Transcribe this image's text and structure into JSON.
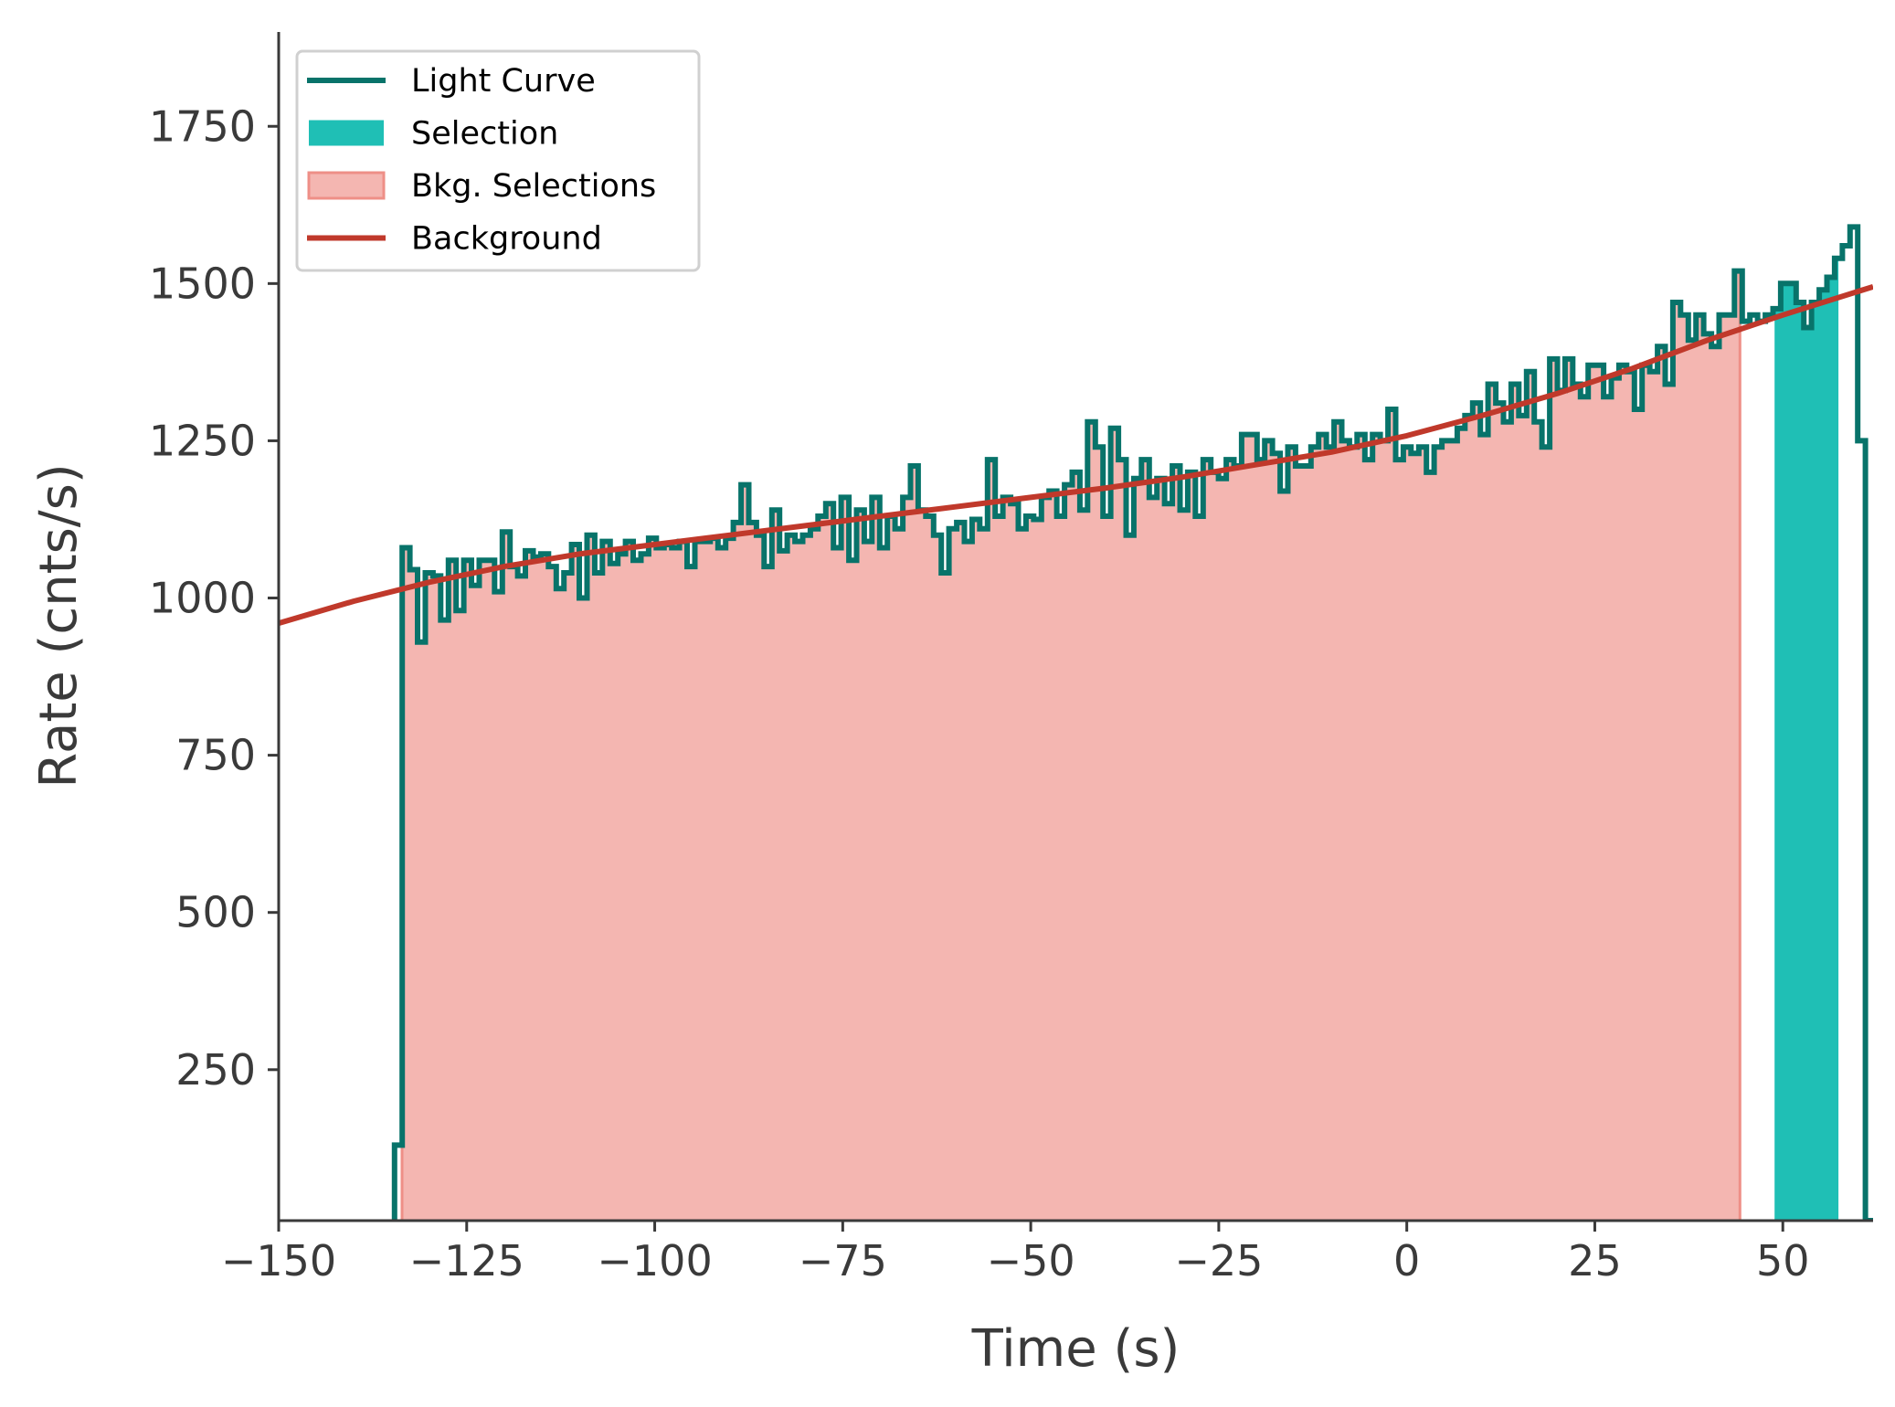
{
  "chart_data": {
    "type": "line",
    "title": "",
    "xlabel": "Time (s)",
    "ylabel": "Rate (cnts/s)",
    "xlim": [
      -150,
      62
    ],
    "ylim": [
      10,
      1900
    ],
    "xticks": [
      -150,
      -125,
      -100,
      -75,
      -50,
      -25,
      0,
      25,
      50
    ],
    "xtick_labels": [
      "−150",
      "−125",
      "−100",
      "−75",
      "−50",
      "−25",
      "0",
      "25",
      "50"
    ],
    "yticks": [
      250,
      500,
      750,
      1000,
      1250,
      1500,
      1750
    ],
    "ytick_labels": [
      "250",
      "500",
      "750",
      "1000",
      "1250",
      "1500",
      "1750"
    ],
    "grid": false,
    "legend_position": "top-left",
    "colors": {
      "light_curve": "#08736a",
      "selection": "#1fbfb5",
      "bkg_selection": "#f4b6b1",
      "bkg_selection_edge": "#ee8f87",
      "background": "#c0392b",
      "axis": "#3a3a3a"
    },
    "legend": [
      {
        "label": "Light Curve",
        "kind": "line",
        "color": "#08736a"
      },
      {
        "label": "Selection",
        "kind": "patch",
        "color": "#1fbfb5"
      },
      {
        "label": "Bkg. Selections",
        "kind": "patch",
        "color": "#f4b6b1"
      },
      {
        "label": "Background",
        "kind": "line",
        "color": "#c0392b"
      }
    ],
    "light_curve": {
      "name": "Light Curve",
      "step_start": -134.6,
      "step_width": 1.024,
      "values": [
        130,
        1080,
        1045,
        930,
        1040,
        1035,
        965,
        1060,
        980,
        1060,
        1020,
        1060,
        1060,
        1010,
        1105,
        1050,
        1035,
        1075,
        1065,
        1070,
        1050,
        1015,
        1040,
        1085,
        1000,
        1100,
        1040,
        1090,
        1055,
        1070,
        1090,
        1060,
        1070,
        1095,
        1080,
        1085,
        1080,
        1090,
        1050,
        1090,
        1090,
        1095,
        1080,
        1095,
        1120,
        1180,
        1120,
        1100,
        1050,
        1140,
        1075,
        1100,
        1090,
        1100,
        1110,
        1130,
        1150,
        1080,
        1160,
        1060,
        1140,
        1090,
        1160,
        1080,
        1130,
        1110,
        1160,
        1210,
        1140,
        1130,
        1100,
        1040,
        1110,
        1120,
        1090,
        1125,
        1110,
        1220,
        1130,
        1160,
        1150,
        1110,
        1130,
        1125,
        1160,
        1170,
        1130,
        1180,
        1200,
        1140,
        1280,
        1240,
        1130,
        1270,
        1220,
        1100,
        1190,
        1220,
        1160,
        1190,
        1150,
        1210,
        1140,
        1200,
        1130,
        1220,
        1200,
        1190,
        1220,
        1210,
        1260,
        1260,
        1220,
        1250,
        1230,
        1170,
        1240,
        1210,
        1210,
        1240,
        1260,
        1240,
        1280,
        1250,
        1240,
        1260,
        1220,
        1260,
        1250,
        1300,
        1220,
        1240,
        1230,
        1240,
        1200,
        1240,
        1250,
        1250,
        1270,
        1290,
        1310,
        1260,
        1340,
        1310,
        1280,
        1340,
        1290,
        1360,
        1280,
        1240,
        1380,
        1330,
        1380,
        1340,
        1320,
        1370,
        1370,
        1320,
        1350,
        1370,
        1360,
        1300,
        1370,
        1360,
        1400,
        1340,
        1470,
        1450,
        1410,
        1450,
        1420,
        1400,
        1450,
        1450,
        1520,
        1440,
        1450,
        1440,
        1450,
        1460,
        1500,
        1500,
        1470,
        1430,
        1470,
        1490,
        1510,
        1540,
        1560,
        1590,
        1250,
        10
      ]
    },
    "selection": {
      "name": "Selection",
      "x_range": [
        48.9,
        57.4
      ]
    },
    "bkg_selections": [
      {
        "name": "Bkg. Selections",
        "x_range": [
          -133.6,
          44.3
        ]
      }
    ],
    "background": {
      "name": "Background",
      "x": [
        -150,
        -140,
        -130,
        -120,
        -110,
        -100,
        -90,
        -80,
        -70,
        -60,
        -50,
        -40,
        -30,
        -20,
        -10,
        0,
        10,
        20,
        30,
        40,
        50,
        62
      ],
      "y": [
        960,
        995,
        1025,
        1050,
        1070,
        1085,
        1100,
        1115,
        1130,
        1145,
        1160,
        1175,
        1192,
        1212,
        1232,
        1258,
        1290,
        1325,
        1365,
        1410,
        1450,
        1495
      ]
    }
  }
}
